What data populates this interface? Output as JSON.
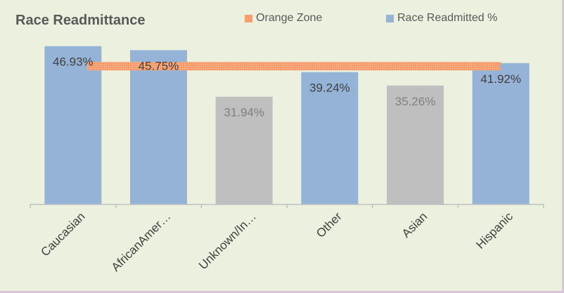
{
  "chart_data": {
    "type": "bar",
    "title": "Race Readmittance",
    "categories": [
      "Caucasian",
      "AfricanAmer…",
      "Unknown/In…",
      "Other",
      "Asian",
      "Hispanic"
    ],
    "series": [
      {
        "name": "Race Readmitted %",
        "values": [
          46.93,
          45.75,
          31.94,
          39.24,
          35.26,
          41.92
        ],
        "labels": [
          "46.93%",
          "45.75%",
          "31.94%",
          "39.24%",
          "35.26%",
          "41.92%"
        ],
        "highlighted": [
          true,
          true,
          false,
          true,
          false,
          true
        ]
      }
    ],
    "reference_line": {
      "name": "Orange Zone",
      "value": 41
    },
    "colors": {
      "highlighted_bar": "#95b3d7",
      "other_bar": "#bfbfbf",
      "orange_zone": "#f79a6a",
      "background": "#ebf1de",
      "highlighted_label": "#404040",
      "other_label": "#7f7f7f"
    },
    "ylim": [
      0,
      50
    ],
    "grid": false,
    "legend": "top"
  }
}
